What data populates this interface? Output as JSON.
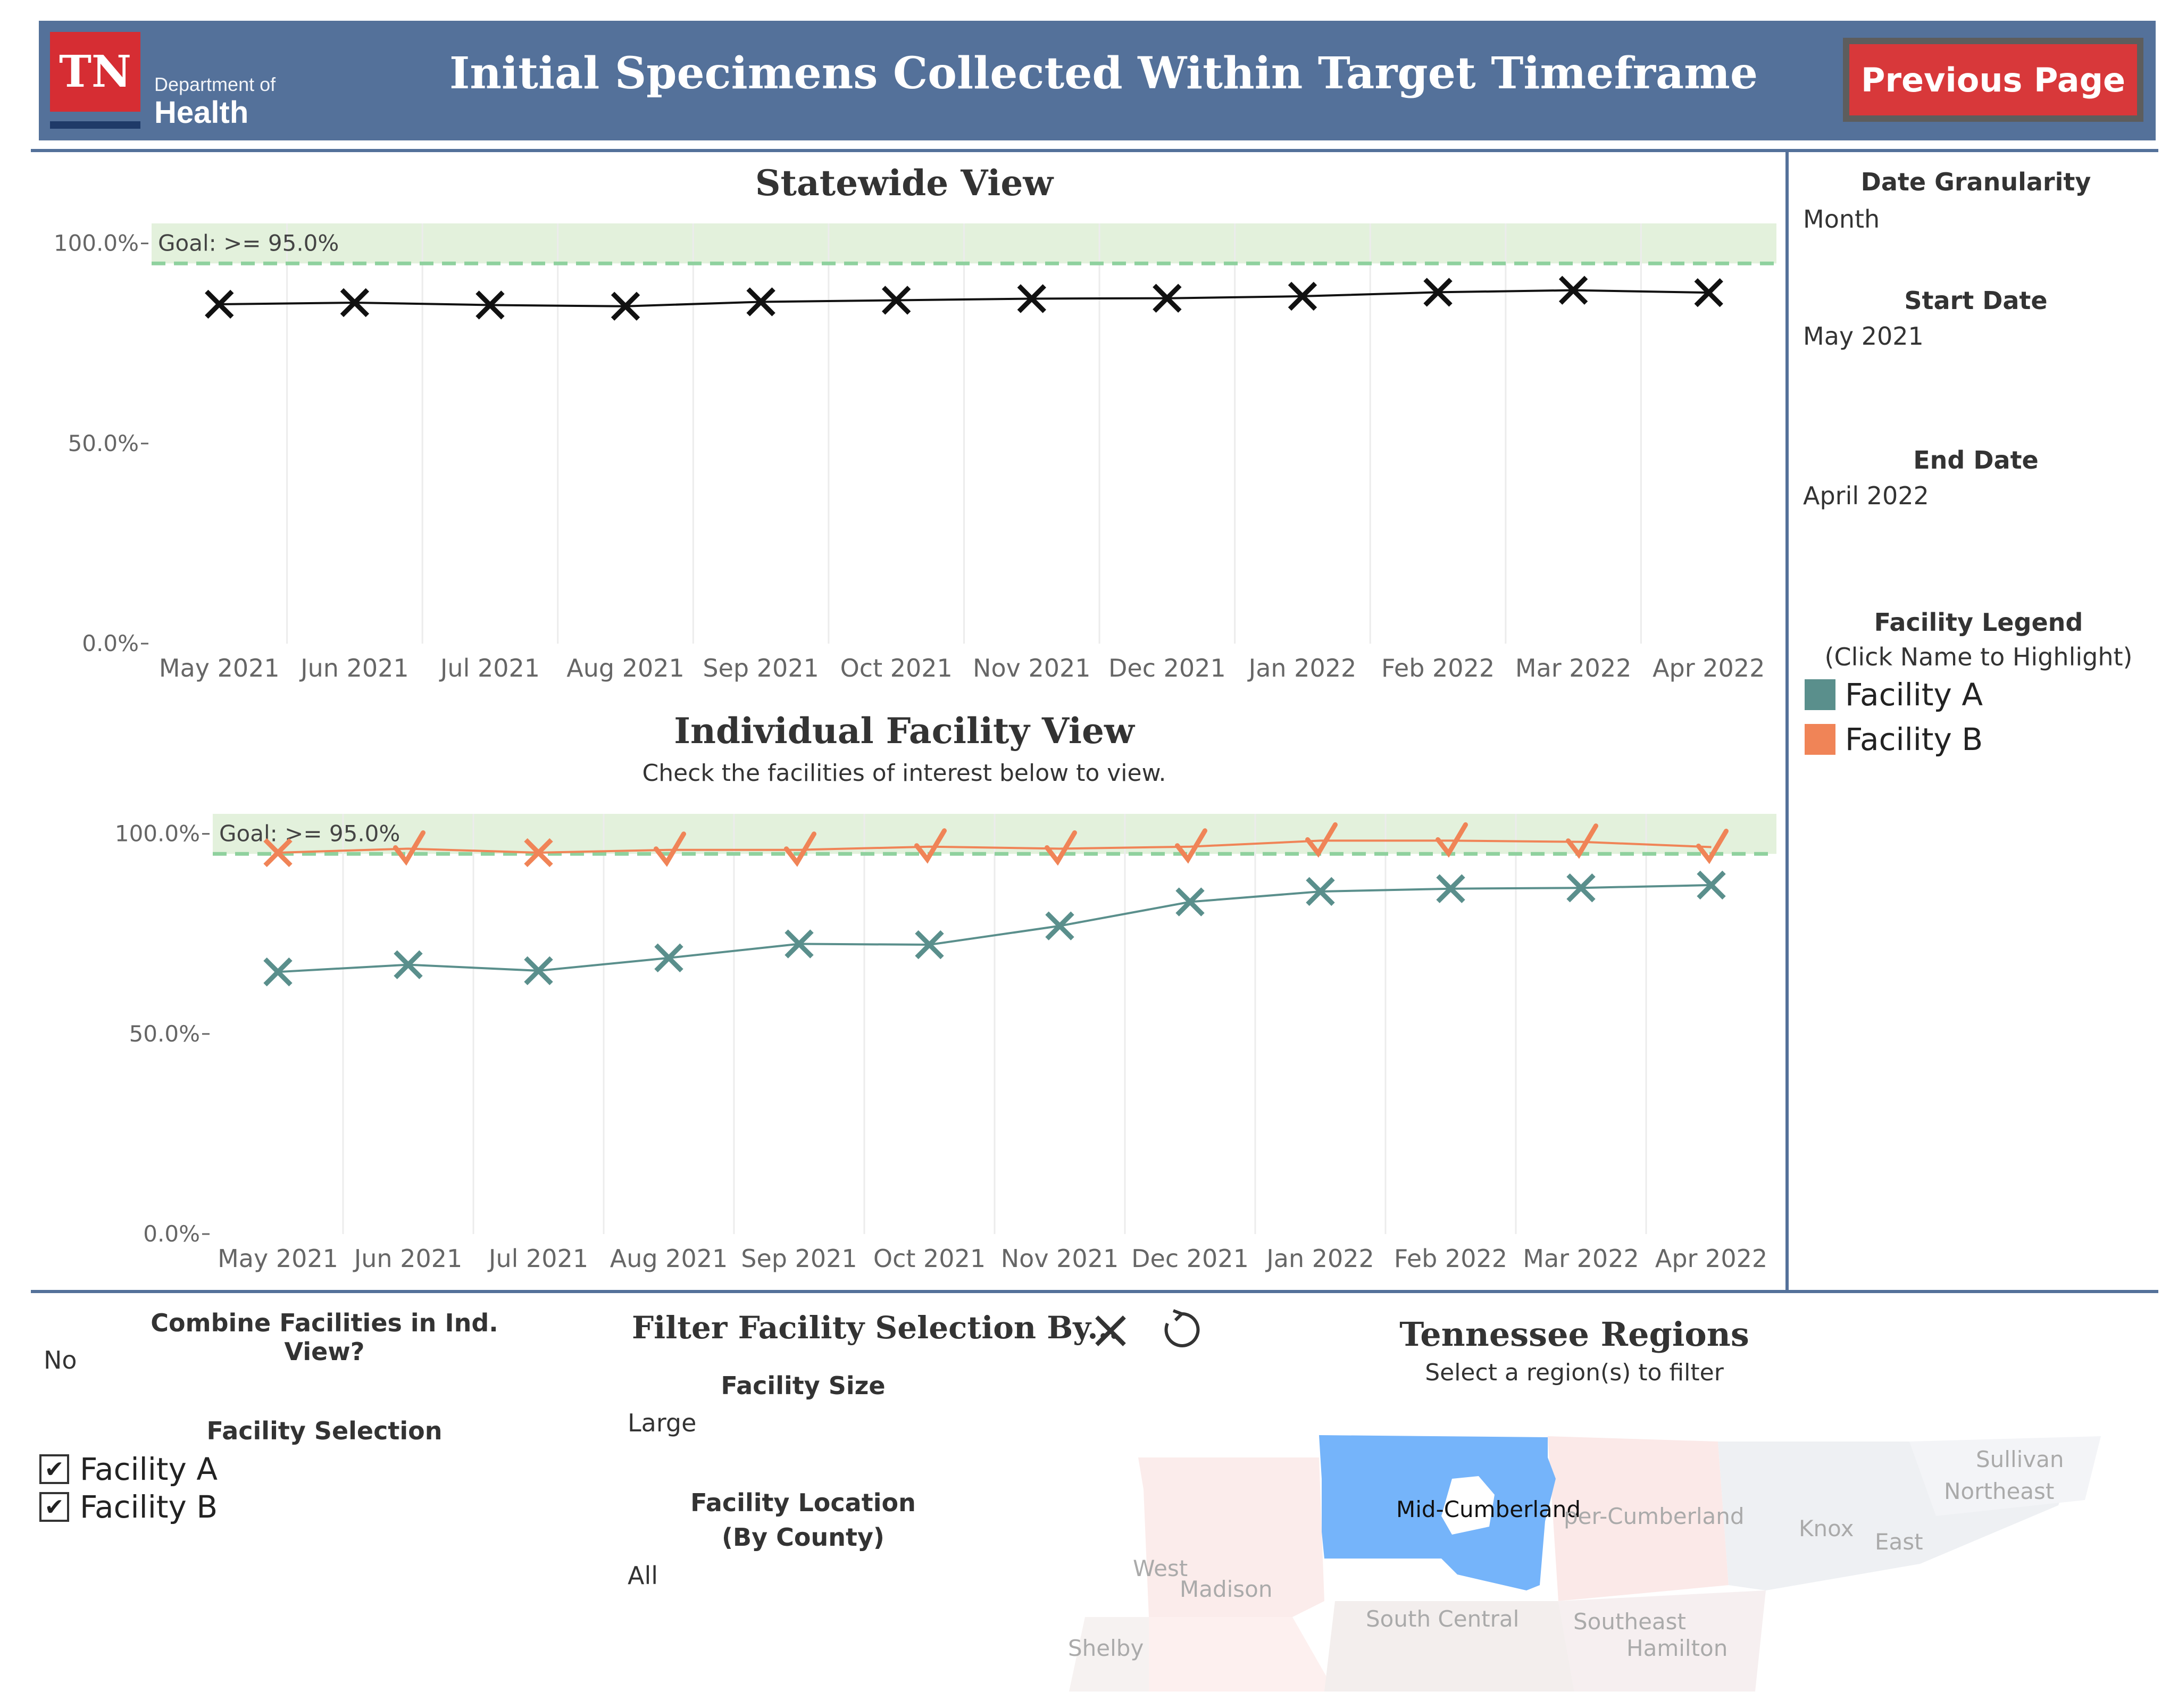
{
  "header": {
    "logo_initials": "TN",
    "logo_dept": "Department of",
    "logo_health": "Health",
    "title": "Initial Specimens Collected Within Target Timeframe",
    "prev_button": "Previous Page",
    "bg_color": "#54719a",
    "button_color": "#d8383a"
  },
  "statewide": {
    "title": "Statewide View"
  },
  "facility_view": {
    "title": "Individual Facility View",
    "subtitle": "Check the facilities of interest below to view."
  },
  "side_panel": {
    "date_granularity_label": "Date Granularity",
    "date_granularity_value": "Month",
    "start_date_label": "Start Date",
    "start_date_value": "May 2021",
    "end_date_label": "End Date",
    "end_date_value": "April 2022",
    "legend_title": "Facility Legend",
    "legend_hint": "(Click Name to Highlight)",
    "legend_items": [
      {
        "label": "Facility A",
        "color": "#5a8f8c"
      },
      {
        "label": "Facility B",
        "color": "#f08457"
      }
    ]
  },
  "bottom": {
    "combine_label": "Combine Facilities in Ind. View?",
    "combine_value": "No",
    "facility_selection_label": "Facility Selection",
    "facility_checks": [
      "Facility A",
      "Facility B"
    ],
    "filter_title": "Filter Facility Selection By...",
    "facility_size_label": "Facility Size",
    "facility_size_value": "Large",
    "facility_location_label_1": "Facility Location",
    "facility_location_label_2": "(By County)",
    "facility_location_value": "All",
    "map_title": "Tennessee Regions",
    "map_subtitle": "Select a region(s) to filter",
    "map_labels": [
      "Mid-Cumberland",
      "per-Cumberland",
      "Sullivan",
      "Northeast",
      "Knox",
      "East",
      "West",
      "Madison",
      "South Central",
      "Southeast",
      "Hamilton",
      "Shelby"
    ],
    "icons": [
      "close-icon",
      "reset-icon"
    ]
  },
  "chart_data": [
    {
      "type": "line",
      "title": "Statewide View",
      "categories": [
        "May 2021",
        "Jun 2021",
        "Jul 2021",
        "Aug 2021",
        "Sep 2021",
        "Oct 2021",
        "Nov 2021",
        "Dec 2021",
        "Jan 2022",
        "Feb 2022",
        "Mar 2022",
        "Apr 2022"
      ],
      "series": [
        {
          "values": [
            84.8,
            85.2,
            84.6,
            84.3,
            85.4,
            85.8,
            86.2,
            86.3,
            86.8,
            87.8,
            88.3,
            87.7
          ],
          "color": "#111111",
          "marker": "x"
        }
      ],
      "yticks": [
        "100.0%",
        "50.0%",
        "0.0%"
      ],
      "ylim": [
        0,
        105
      ],
      "goal_value": 95.0,
      "goal_label": "Goal: >= 95.0%",
      "goal_color": "#8fd19e",
      "goal_band_color": "#e3f1dc",
      "grid": "vertical"
    },
    {
      "type": "line",
      "title": "Individual Facility View",
      "categories": [
        "May 2021",
        "Jun 2021",
        "Jul 2021",
        "Aug 2021",
        "Sep 2021",
        "Oct 2021",
        "Nov 2021",
        "Dec 2021",
        "Jan 2022",
        "Feb 2022",
        "Mar 2022",
        "Apr 2022"
      ],
      "series": [
        {
          "name": "Facility A",
          "values": [
            65.5,
            67.3,
            65.8,
            69.0,
            72.5,
            72.3,
            77.0,
            83.0,
            85.6,
            86.3,
            86.5,
            87.2
          ],
          "color": "#5a8f8c",
          "marker": "x"
        },
        {
          "name": "Facility B",
          "values": [
            95.3,
            96.3,
            95.3,
            96.0,
            96.0,
            96.8,
            96.3,
            96.8,
            98.3,
            98.3,
            98.0,
            96.7
          ],
          "color": "#f08457",
          "marker": "mixed",
          "marker_kinds": [
            "x",
            "check",
            "x",
            "check",
            "check",
            "check",
            "check",
            "check",
            "check",
            "check",
            "check",
            "check"
          ]
        }
      ],
      "yticks": [
        "100.0%",
        "50.0%",
        "0.0%"
      ],
      "ylim": [
        0,
        105
      ],
      "goal_value": 95.0,
      "goal_label": "Goal: >= 95.0%",
      "grid": "vertical"
    }
  ]
}
